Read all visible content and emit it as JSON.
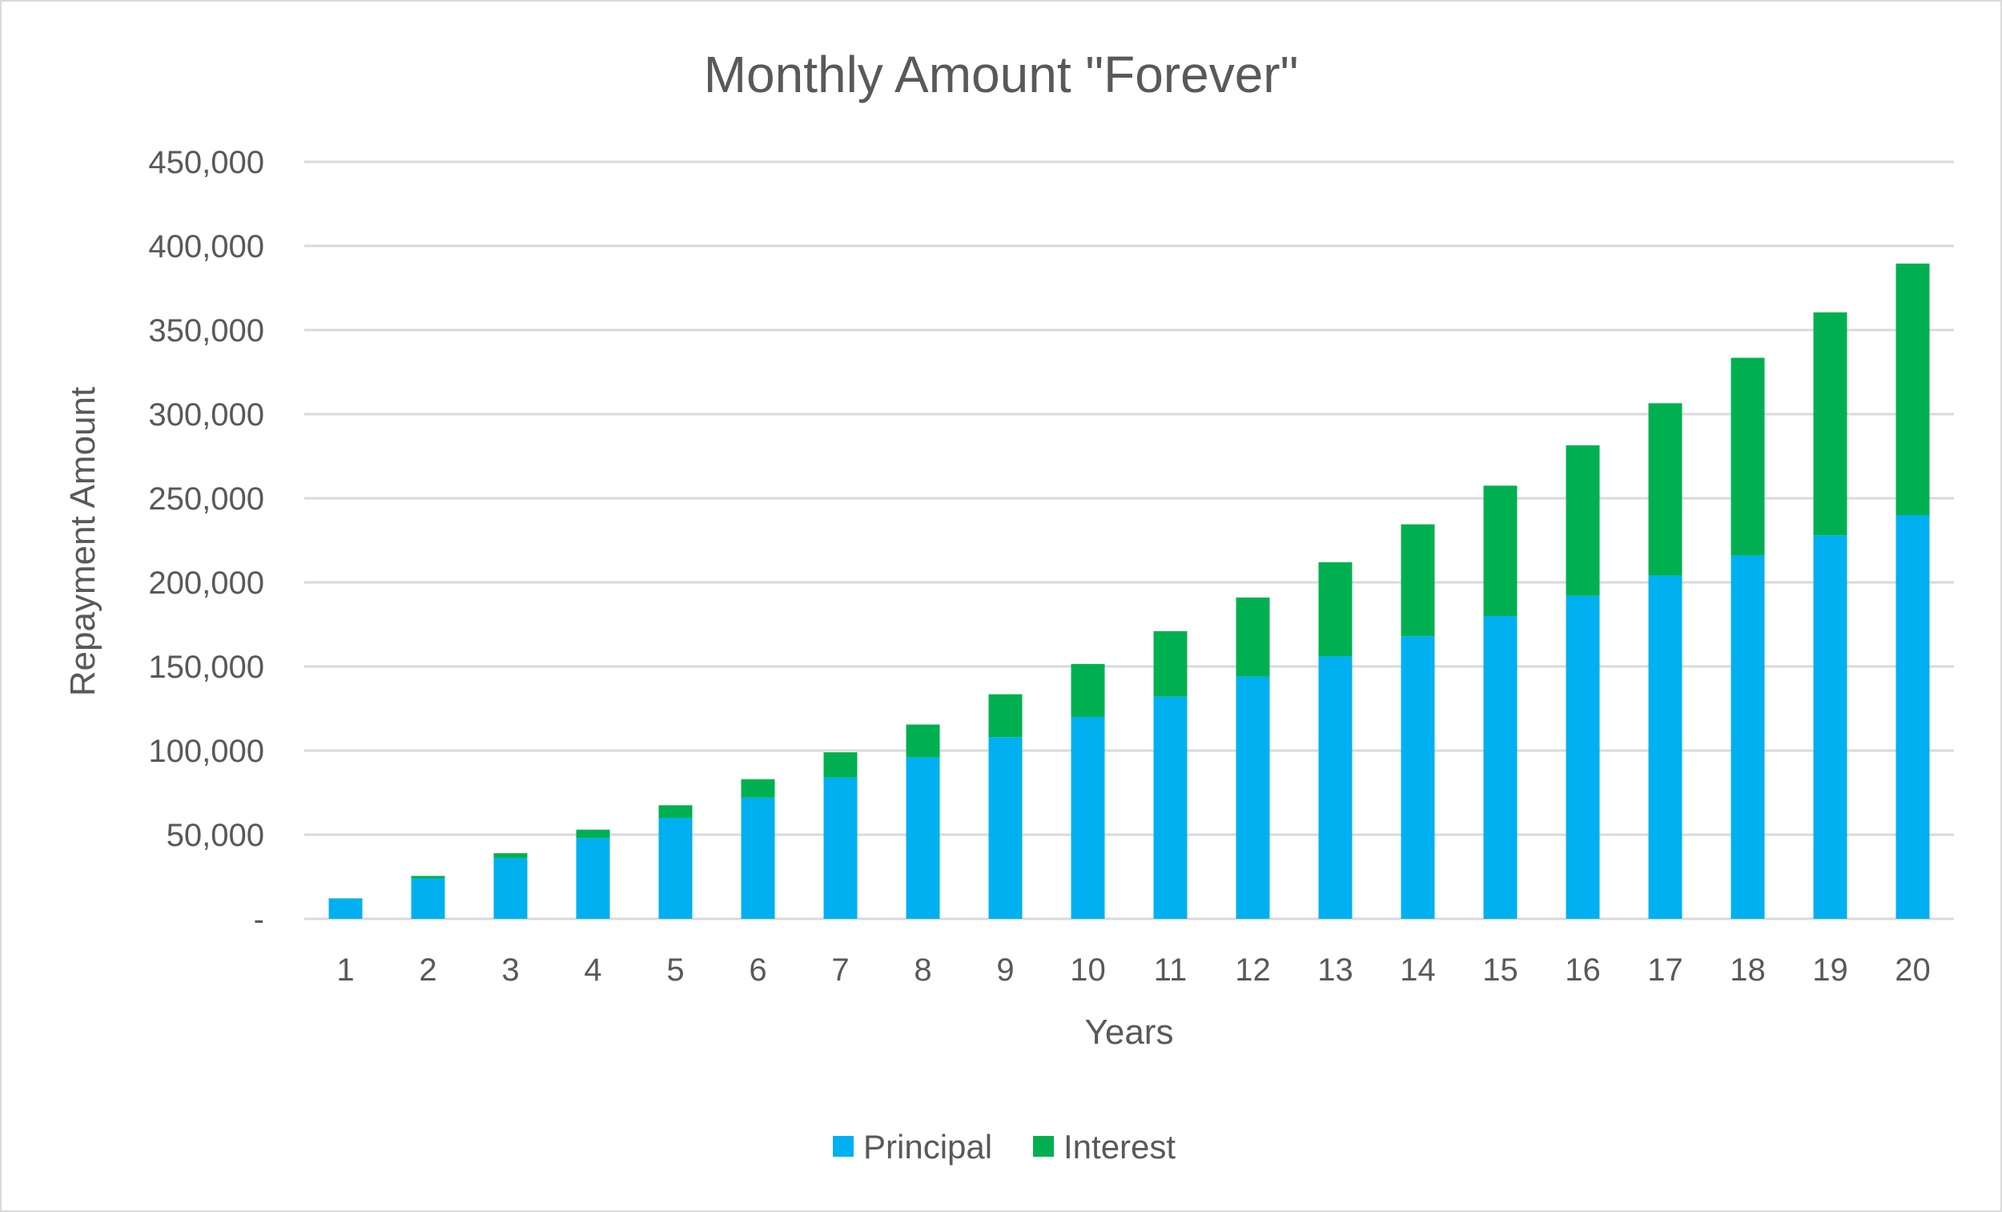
{
  "chart_data": {
    "type": "bar",
    "stacked": true,
    "title": "Monthly Amount \"Forever\"",
    "xlabel": "Years",
    "ylabel": "Repayment Amount",
    "categories": [
      "1",
      "2",
      "3",
      "4",
      "5",
      "6",
      "7",
      "8",
      "9",
      "10",
      "11",
      "12",
      "13",
      "14",
      "15",
      "16",
      "17",
      "18",
      "19",
      "20"
    ],
    "series": [
      {
        "name": "Principal",
        "color": "#00B0F0",
        "values": [
          12000,
          24000,
          36000,
          48000,
          60000,
          72000,
          84000,
          96000,
          108000,
          120000,
          132000,
          144000,
          156000,
          168000,
          180000,
          192000,
          204000,
          216000,
          228000,
          240000
        ]
      },
      {
        "name": "Interest",
        "color": "#00B050",
        "values": [
          200,
          1500,
          3000,
          5000,
          7500,
          11000,
          15000,
          19500,
          25500,
          31500,
          39000,
          47000,
          56000,
          66500,
          77500,
          89500,
          102500,
          117500,
          132500,
          149500
        ]
      }
    ],
    "ylim": [
      0,
      450000
    ],
    "yticks": [
      {
        "value": 0,
        "label": "-"
      },
      {
        "value": 50000,
        "label": "50,000"
      },
      {
        "value": 100000,
        "label": "100,000"
      },
      {
        "value": 150000,
        "label": "150,000"
      },
      {
        "value": 200000,
        "label": "200,000"
      },
      {
        "value": 250000,
        "label": "250,000"
      },
      {
        "value": 300000,
        "label": "300,000"
      },
      {
        "value": 350000,
        "label": "350,000"
      },
      {
        "value": 400000,
        "label": "400,000"
      },
      {
        "value": 450000,
        "label": "450,000"
      }
    ],
    "grid": true,
    "legend_position": "bottom"
  }
}
